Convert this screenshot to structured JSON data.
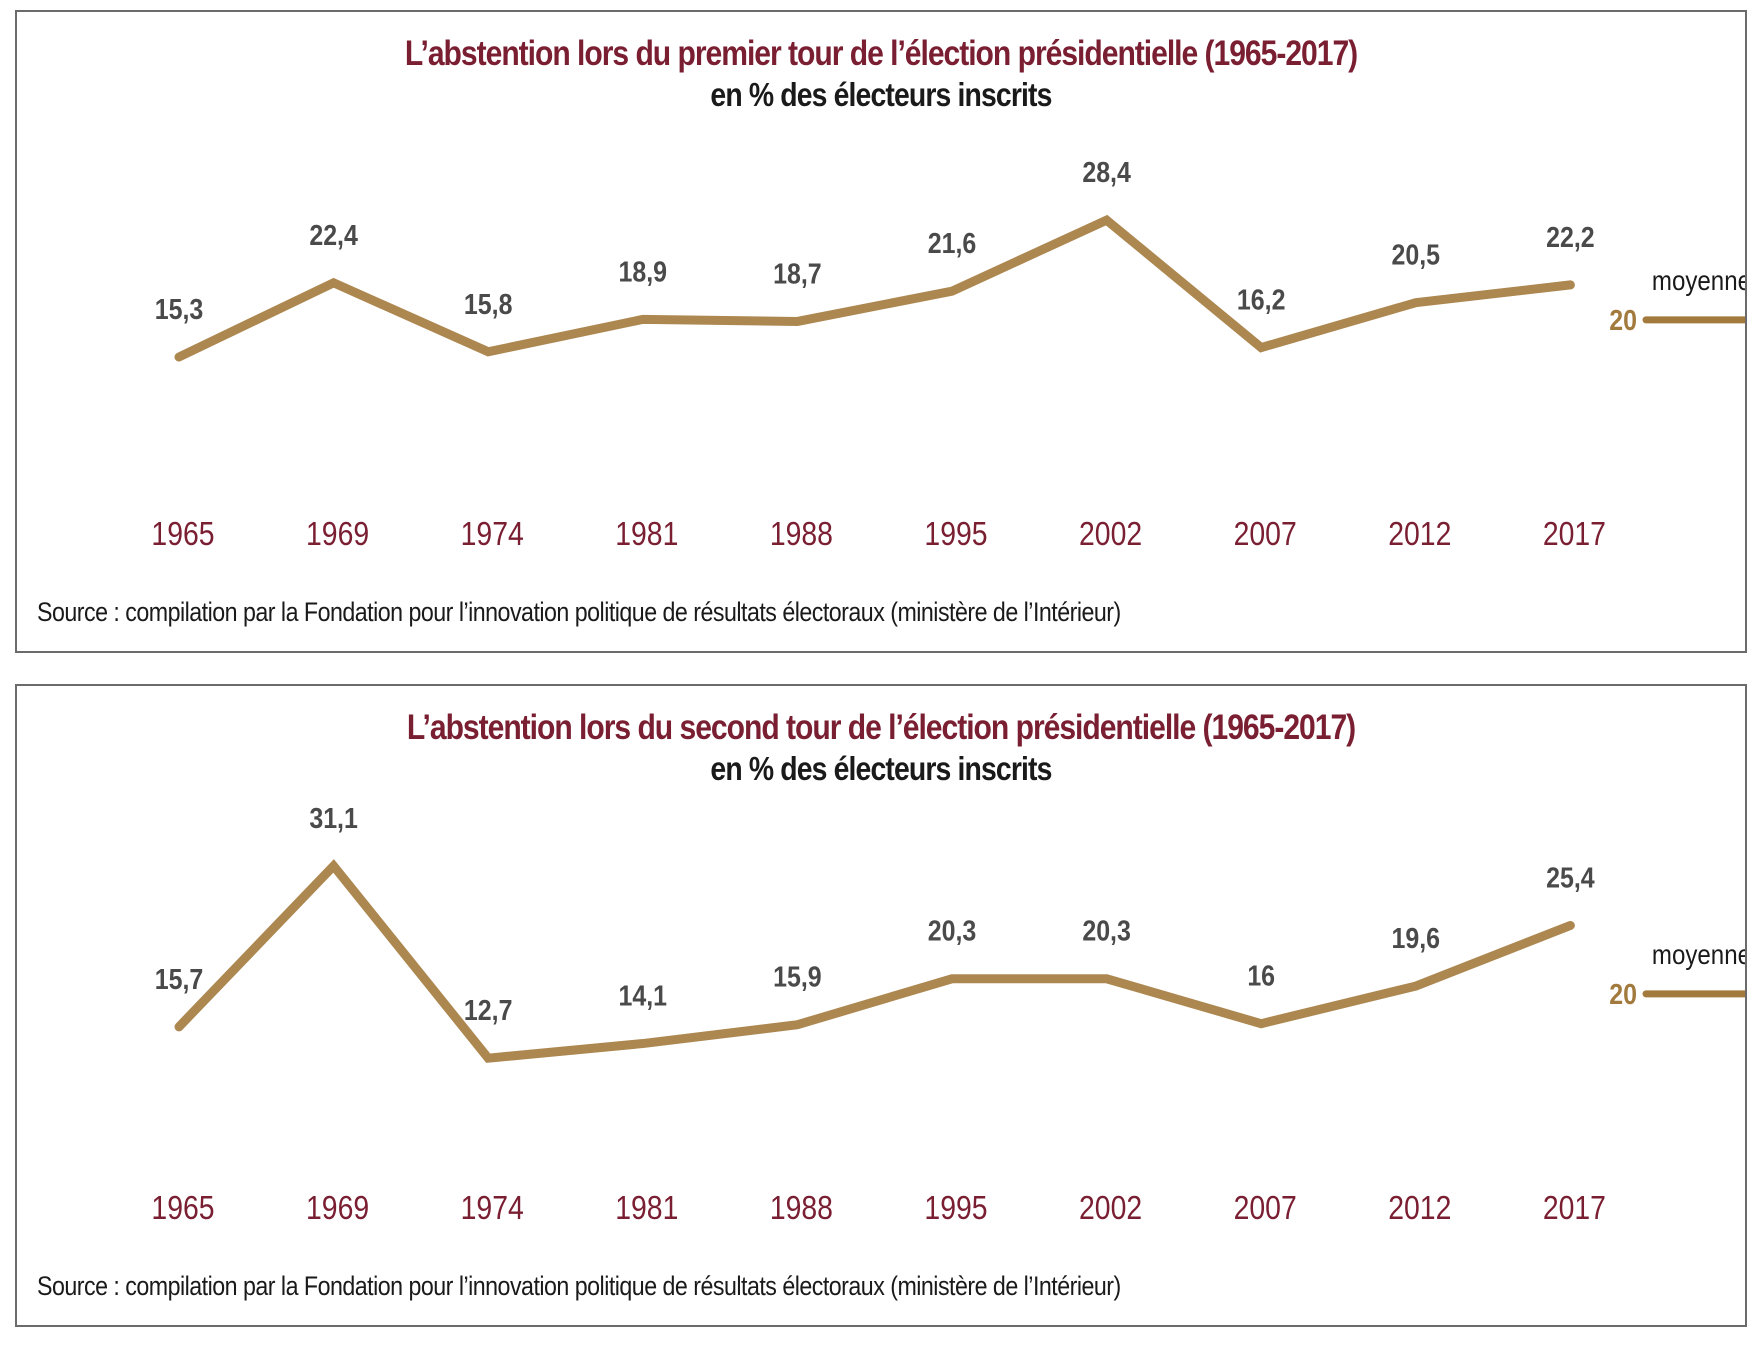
{
  "colors": {
    "line": "#ad8750",
    "avg_line": "#a37a3e",
    "title": "#7a1e32",
    "year": "#7a1e32",
    "value_label": "#4a4a4a",
    "border": "#6b6b6b"
  },
  "chart_data": [
    {
      "type": "line",
      "title": "L’abstention lors du premier tour de l’élection présidentielle (1965-2017)",
      "subtitle": "en % des électeurs inscrits",
      "xlabel": "",
      "ylabel": "",
      "categories": [
        "1965",
        "1969",
        "1974",
        "1981",
        "1988",
        "1995",
        "2002",
        "2007",
        "2012",
        "2017"
      ],
      "values": [
        15.3,
        22.4,
        15.8,
        18.9,
        18.7,
        21.6,
        28.4,
        16.2,
        20.5,
        22.2
      ],
      "value_labels": [
        "15,3",
        "22,4",
        "15,8",
        "18,9",
        "18,7",
        "21,6",
        "28,4",
        "16,2",
        "20,5",
        "22,2"
      ],
      "average": {
        "label": "moyenne",
        "value": 20,
        "value_label": "20"
      },
      "grid": false,
      "legend": "none",
      "source": "Source : compilation par la Fondation pour l’innovation politique de résultats électoraux (ministère de l’Intérieur)"
    },
    {
      "type": "line",
      "title": "L’abstention lors du second tour de l’élection présidentielle (1965-2017)",
      "subtitle": "en % des électeurs inscrits",
      "xlabel": "",
      "ylabel": "",
      "categories": [
        "1965",
        "1969",
        "1974",
        "1981",
        "1988",
        "1995",
        "2002",
        "2007",
        "2012",
        "2017"
      ],
      "values": [
        15.7,
        31.1,
        12.7,
        14.1,
        15.9,
        20.3,
        20.3,
        16,
        19.6,
        25.4
      ],
      "value_labels": [
        "15,7",
        "31,1",
        "12,7",
        "14,1",
        "15,9",
        "20,3",
        "20,3",
        "16",
        "19,6",
        "25,4"
      ],
      "average": {
        "label": "moyenne",
        "value": 20,
        "value_label": "20"
      },
      "grid": false,
      "legend": "none",
      "source": "Source : compilation par la Fondation pour l’innovation politique de résultats électoraux (ministère de l’Intérieur)"
    }
  ]
}
